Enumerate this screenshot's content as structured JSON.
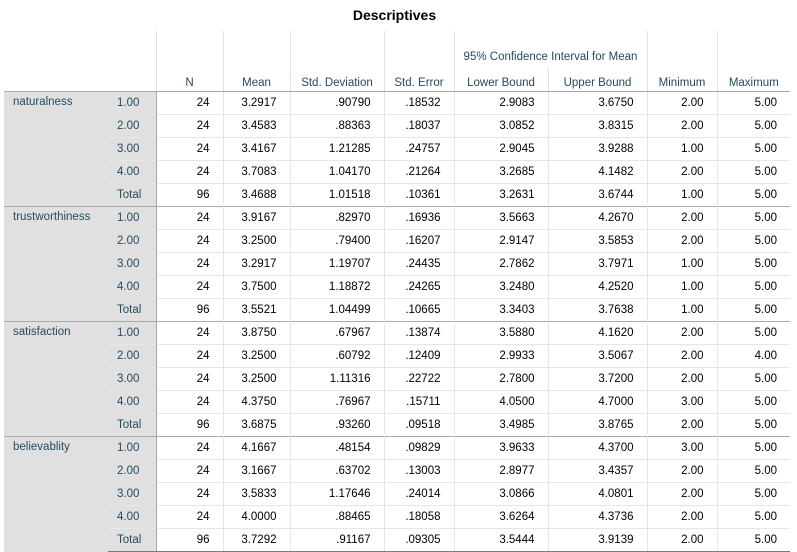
{
  "title": "Descriptives",
  "headers": {
    "n": "N",
    "mean": "Mean",
    "std_dev": "Std. Deviation",
    "std_err": "Std. Error",
    "ci_title": "95% Confidence Interval for Mean",
    "lower": "Lower Bound",
    "upper": "Upper Bound",
    "min": "Minimum",
    "max": "Maximum"
  },
  "variables": [
    {
      "name": "naturalness",
      "rows": [
        {
          "group": "1.00",
          "n": "24",
          "mean": "3.2917",
          "sd": ".90790",
          "se": ".18532",
          "lb": "2.9083",
          "ub": "3.6750",
          "min": "2.00",
          "max": "5.00"
        },
        {
          "group": "2.00",
          "n": "24",
          "mean": "3.4583",
          "sd": ".88363",
          "se": ".18037",
          "lb": "3.0852",
          "ub": "3.8315",
          "min": "2.00",
          "max": "5.00"
        },
        {
          "group": "3.00",
          "n": "24",
          "mean": "3.4167",
          "sd": "1.21285",
          "se": ".24757",
          "lb": "2.9045",
          "ub": "3.9288",
          "min": "1.00",
          "max": "5.00"
        },
        {
          "group": "4.00",
          "n": "24",
          "mean": "3.7083",
          "sd": "1.04170",
          "se": ".21264",
          "lb": "3.2685",
          "ub": "4.1482",
          "min": "2.00",
          "max": "5.00"
        },
        {
          "group": "Total",
          "n": "96",
          "mean": "3.4688",
          "sd": "1.01518",
          "se": ".10361",
          "lb": "3.2631",
          "ub": "3.6744",
          "min": "1.00",
          "max": "5.00"
        }
      ]
    },
    {
      "name": "trustworthiness",
      "rows": [
        {
          "group": "1.00",
          "n": "24",
          "mean": "3.9167",
          "sd": ".82970",
          "se": ".16936",
          "lb": "3.5663",
          "ub": "4.2670",
          "min": "2.00",
          "max": "5.00"
        },
        {
          "group": "2.00",
          "n": "24",
          "mean": "3.2500",
          "sd": ".79400",
          "se": ".16207",
          "lb": "2.9147",
          "ub": "3.5853",
          "min": "2.00",
          "max": "5.00"
        },
        {
          "group": "3.00",
          "n": "24",
          "mean": "3.2917",
          "sd": "1.19707",
          "se": ".24435",
          "lb": "2.7862",
          "ub": "3.7971",
          "min": "1.00",
          "max": "5.00"
        },
        {
          "group": "4.00",
          "n": "24",
          "mean": "3.7500",
          "sd": "1.18872",
          "se": ".24265",
          "lb": "3.2480",
          "ub": "4.2520",
          "min": "1.00",
          "max": "5.00"
        },
        {
          "group": "Total",
          "n": "96",
          "mean": "3.5521",
          "sd": "1.04499",
          "se": ".10665",
          "lb": "3.3403",
          "ub": "3.7638",
          "min": "1.00",
          "max": "5.00"
        }
      ]
    },
    {
      "name": "satisfaction",
      "rows": [
        {
          "group": "1.00",
          "n": "24",
          "mean": "3.8750",
          "sd": ".67967",
          "se": ".13874",
          "lb": "3.5880",
          "ub": "4.1620",
          "min": "2.00",
          "max": "5.00"
        },
        {
          "group": "2.00",
          "n": "24",
          "mean": "3.2500",
          "sd": ".60792",
          "se": ".12409",
          "lb": "2.9933",
          "ub": "3.5067",
          "min": "2.00",
          "max": "4.00"
        },
        {
          "group": "3.00",
          "n": "24",
          "mean": "3.2500",
          "sd": "1.11316",
          "se": ".22722",
          "lb": "2.7800",
          "ub": "3.7200",
          "min": "2.00",
          "max": "5.00"
        },
        {
          "group": "4.00",
          "n": "24",
          "mean": "4.3750",
          "sd": ".76967",
          "se": ".15711",
          "lb": "4.0500",
          "ub": "4.7000",
          "min": "3.00",
          "max": "5.00"
        },
        {
          "group": "Total",
          "n": "96",
          "mean": "3.6875",
          "sd": ".93260",
          "se": ".09518",
          "lb": "3.4985",
          "ub": "3.8765",
          "min": "2.00",
          "max": "5.00"
        }
      ]
    },
    {
      "name": "believablity",
      "rows": [
        {
          "group": "1.00",
          "n": "24",
          "mean": "4.1667",
          "sd": ".48154",
          "se": ".09829",
          "lb": "3.9633",
          "ub": "4.3700",
          "min": "3.00",
          "max": "5.00"
        },
        {
          "group": "2.00",
          "n": "24",
          "mean": "3.1667",
          "sd": ".63702",
          "se": ".13003",
          "lb": "2.8977",
          "ub": "3.4357",
          "min": "2.00",
          "max": "5.00"
        },
        {
          "group": "3.00",
          "n": "24",
          "mean": "3.5833",
          "sd": "1.17646",
          "se": ".24014",
          "lb": "3.0866",
          "ub": "4.0801",
          "min": "2.00",
          "max": "5.00"
        },
        {
          "group": "4.00",
          "n": "24",
          "mean": "4.0000",
          "sd": ".88465",
          "se": ".18058",
          "lb": "3.6264",
          "ub": "4.3736",
          "min": "2.00",
          "max": "5.00"
        },
        {
          "group": "Total",
          "n": "96",
          "mean": "3.7292",
          "sd": ".91167",
          "se": ".09305",
          "lb": "3.5444",
          "ub": "3.9139",
          "min": "2.00",
          "max": "5.00"
        }
      ]
    }
  ]
}
